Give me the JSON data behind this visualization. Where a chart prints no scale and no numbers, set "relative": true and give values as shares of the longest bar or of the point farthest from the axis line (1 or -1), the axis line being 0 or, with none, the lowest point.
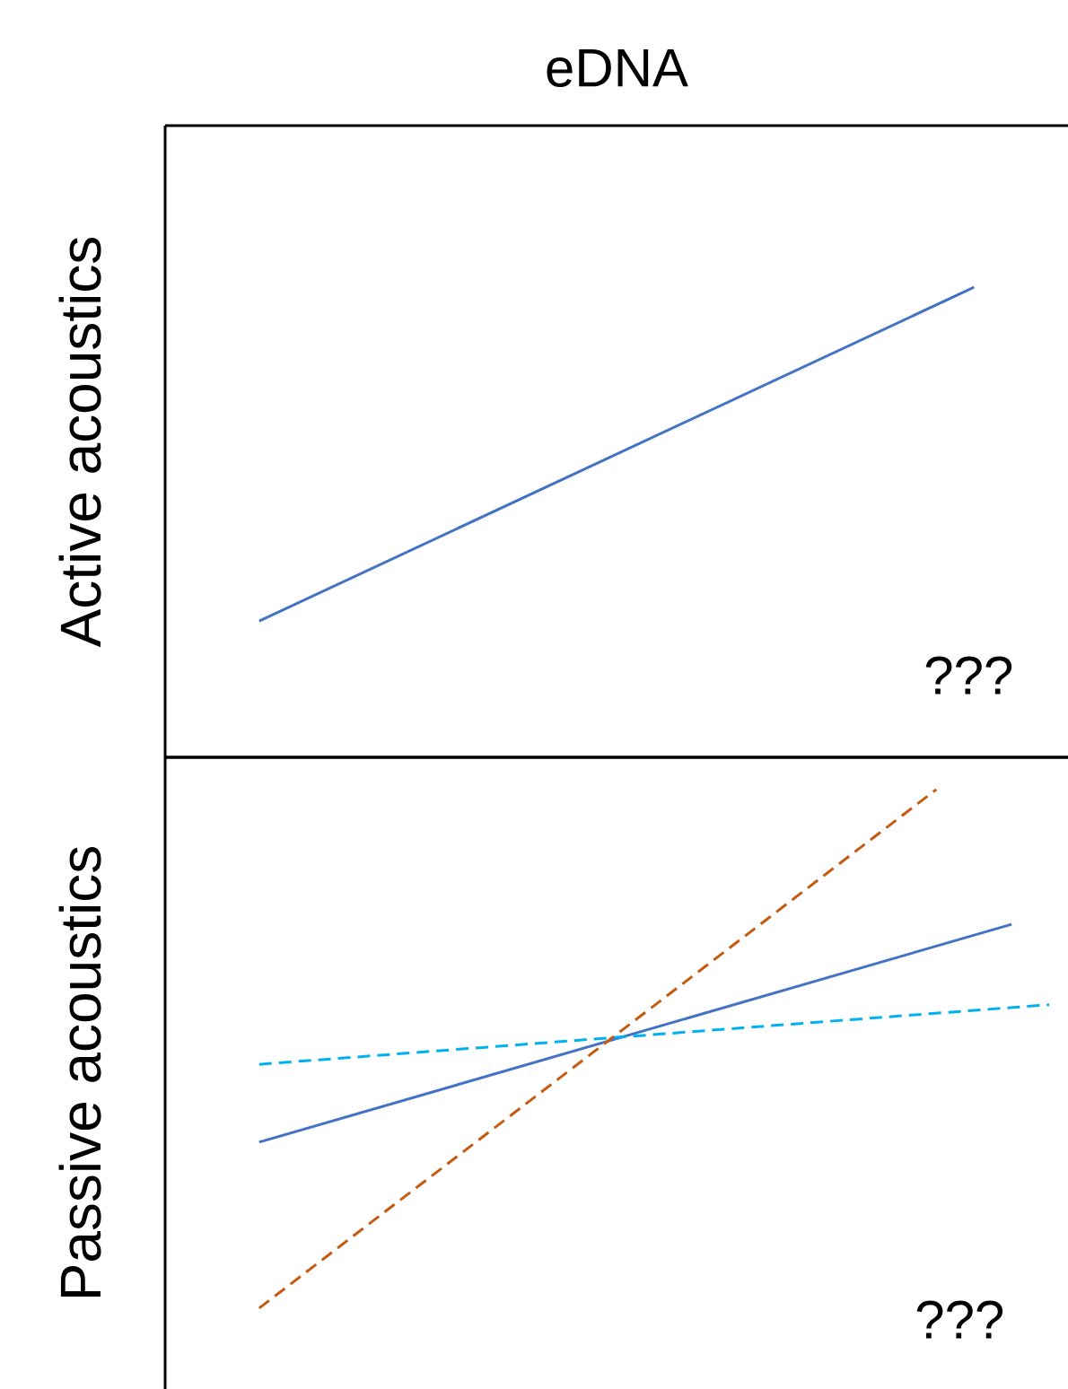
{
  "chart_data": [
    {
      "type": "line",
      "title": "eDNA",
      "ylabel": "Active acoustics",
      "annotations": [
        "???"
      ],
      "relative": true,
      "tick_labels": false,
      "marker": "none",
      "categories": [
        null,
        null,
        null,
        null,
        null,
        null,
        null,
        null,
        null,
        null,
        null,
        null,
        null,
        null,
        null,
        null,
        null,
        null,
        null,
        null,
        null,
        null,
        null,
        null
      ],
      "series": [
        {
          "color": "#4472c4",
          "line_style": "solid",
          "values": [
            null,
            null,
            0.29,
            null,
            null,
            null,
            null,
            null,
            null,
            null,
            null,
            null,
            null,
            null,
            null,
            null,
            null,
            null,
            null,
            null,
            null,
            1,
            null,
            null
          ]
        }
      ]
    },
    {
      "type": "line",
      "ylabel": "Passive acoustics",
      "annotations": [
        "???"
      ],
      "relative": true,
      "tick_labels": false,
      "marker": "none",
      "categories": [
        null,
        null,
        null,
        null,
        null,
        null,
        null,
        null,
        null,
        null,
        null,
        null,
        null,
        null,
        null,
        null,
        null,
        null,
        null,
        null,
        null,
        null,
        null,
        null
      ],
      "series": [
        {
          "color": "#4472c4",
          "line_style": "solid",
          "values": [
            null,
            null,
            0.32,
            null,
            null,
            null,
            null,
            null,
            null,
            null,
            null,
            null,
            null,
            null,
            null,
            null,
            null,
            null,
            null,
            null,
            null,
            null,
            0.74,
            null
          ]
        },
        {
          "color": "#00b0f0",
          "line_style": "dashed",
          "values": [
            null,
            null,
            0.47,
            null,
            null,
            null,
            null,
            null,
            null,
            null,
            null,
            null,
            null,
            null,
            null,
            null,
            null,
            null,
            null,
            null,
            null,
            null,
            null,
            0.585
          ]
        },
        {
          "color": "#c55a11",
          "line_style": "dashed",
          "values": [
            null,
            null,
            0,
            null,
            null,
            null,
            null,
            null,
            null,
            null,
            null,
            null,
            null,
            null,
            null,
            null,
            null,
            null,
            null,
            null,
            1,
            null,
            null,
            null
          ]
        }
      ]
    }
  ]
}
